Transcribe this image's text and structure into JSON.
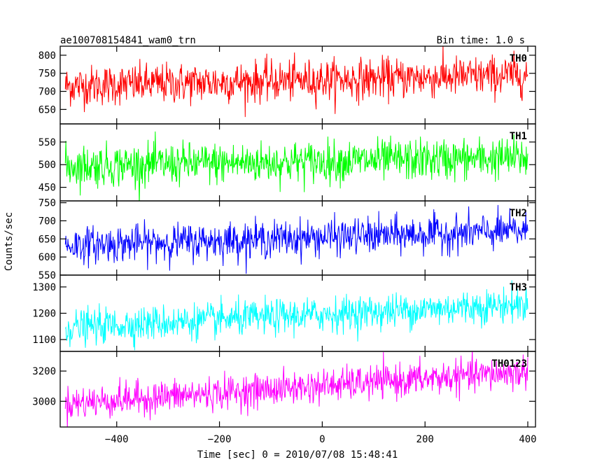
{
  "header": {
    "obs_id": "ae100708154841_wam0_trn",
    "bin_time": "Bin time: 1.0 s"
  },
  "axes": {
    "ylabel": "Counts/sec",
    "xlabel": "Time [sec] 0 = 2010/07/08 15:48:41",
    "xlim": [
      -510,
      415
    ],
    "xticks": [
      -400,
      -200,
      0,
      200,
      400
    ],
    "xtick_labels": [
      "−400",
      "−200",
      "0",
      "200",
      "400"
    ]
  },
  "colors": {
    "TH0": "#ff0000",
    "TH1": "#00ff00",
    "TH2": "#0000ff",
    "TH3": "#00ffff",
    "TH0123": "#ff00ff"
  },
  "chart_data": {
    "type": "line",
    "x_range": [
      -500,
      400
    ],
    "x_step": 1,
    "panels": [
      {
        "name": "TH0",
        "color": "#ff0000",
        "ylim": [
          610,
          825
        ],
        "yticks": [
          650,
          700,
          750,
          800
        ],
        "approx_mean_start": 715,
        "approx_mean_end": 745,
        "approx_noise_sd": 28
      },
      {
        "name": "TH1",
        "color": "#00ff00",
        "ylim": [
          420,
          590
        ],
        "yticks": [
          450,
          500,
          550
        ],
        "approx_mean_start": 497,
        "approx_mean_end": 515,
        "approx_noise_sd": 23
      },
      {
        "name": "TH2",
        "color": "#0000ff",
        "ylim": [
          550,
          755
        ],
        "yticks": [
          550,
          600,
          650,
          700,
          750
        ],
        "approx_mean_start": 632,
        "approx_mean_end": 672,
        "approx_noise_sd": 25
      },
      {
        "name": "TH3",
        "color": "#00ffff",
        "ylim": [
          1055,
          1345
        ],
        "yticks": [
          1100,
          1200,
          1300
        ],
        "approx_mean_start": 1145,
        "approx_mean_end": 1235,
        "approx_noise_sd": 33
      },
      {
        "name": "TH0123",
        "color": "#ff00ff",
        "ylim": [
          2830,
          3330
        ],
        "yticks": [
          3000,
          3200
        ],
        "approx_mean_start": 2985,
        "approx_mean_end": 3195,
        "approx_noise_sd": 55
      }
    ]
  }
}
